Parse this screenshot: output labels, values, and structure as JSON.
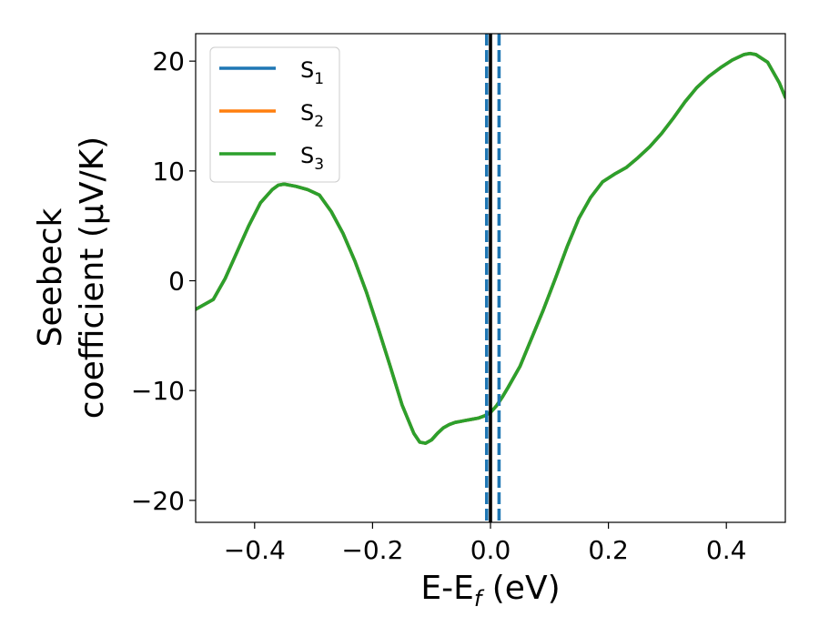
{
  "chart_data": {
    "type": "line",
    "xlabel_main": "E-E",
    "xlabel_sub": "f",
    "xlabel_unit": " (eV)",
    "ylabel_line1": "Seebeck",
    "ylabel_line2": "coefficient  (μV/K)",
    "xlim": [
      -0.5,
      0.5
    ],
    "ylim": [
      -22,
      22.5
    ],
    "xticks": [
      -0.4,
      -0.2,
      0.0,
      0.2,
      0.4
    ],
    "xtick_labels": [
      "−0.4",
      "−0.2",
      "0.0",
      "0.2",
      "0.4"
    ],
    "yticks": [
      -20,
      -10,
      0,
      10,
      20
    ],
    "ytick_labels": [
      "−20",
      "−10",
      "0",
      "10",
      "20"
    ],
    "grid": false,
    "legend_position": "top-left",
    "fermi_level_x": 0.0,
    "dashed_lines_x": [
      -0.0065,
      0.0145
    ],
    "series": [
      {
        "name": "S",
        "sub": "1",
        "color": "#1f77b4",
        "x": [
          -0.5,
          -0.47,
          -0.45,
          -0.43,
          -0.41,
          -0.39,
          -0.37,
          -0.36,
          -0.35,
          -0.33,
          -0.31,
          -0.29,
          -0.27,
          -0.25,
          -0.23,
          -0.21,
          -0.19,
          -0.17,
          -0.15,
          -0.13,
          -0.12,
          -0.11,
          -0.1,
          -0.09,
          -0.08,
          -0.07,
          -0.06,
          -0.05,
          -0.04,
          -0.03,
          -0.02,
          -0.01,
          0.0,
          0.01,
          0.02,
          0.03,
          0.05,
          0.07,
          0.09,
          0.11,
          0.13,
          0.15,
          0.17,
          0.19,
          0.21,
          0.23,
          0.25,
          0.27,
          0.29,
          0.31,
          0.33,
          0.35,
          0.37,
          0.39,
          0.41,
          0.43,
          0.44,
          0.45,
          0.47,
          0.49,
          0.5
        ],
        "y": [
          -2.6,
          -1.7,
          0.2,
          2.6,
          5.0,
          7.1,
          8.3,
          8.7,
          8.8,
          8.6,
          8.3,
          7.8,
          6.3,
          4.3,
          1.8,
          -1.1,
          -4.4,
          -7.8,
          -11.3,
          -13.9,
          -14.7,
          -14.8,
          -14.5,
          -13.9,
          -13.4,
          -13.1,
          -12.9,
          -12.8,
          -12.7,
          -12.6,
          -12.5,
          -12.3,
          -12.0,
          -11.4,
          -10.6,
          -9.7,
          -7.8,
          -5.2,
          -2.6,
          0.2,
          3.1,
          5.7,
          7.6,
          9.0,
          9.7,
          10.3,
          11.2,
          12.2,
          13.4,
          14.8,
          16.3,
          17.6,
          18.6,
          19.4,
          20.1,
          20.6,
          20.7,
          20.6,
          19.9,
          18.0,
          16.7
        ]
      },
      {
        "name": "S",
        "sub": "2",
        "color": "#ff7f0e",
        "x": [
          -0.5,
          -0.47,
          -0.45,
          -0.43,
          -0.41,
          -0.39,
          -0.37,
          -0.36,
          -0.35,
          -0.33,
          -0.31,
          -0.29,
          -0.27,
          -0.25,
          -0.23,
          -0.21,
          -0.19,
          -0.17,
          -0.15,
          -0.13,
          -0.12,
          -0.11,
          -0.1,
          -0.09,
          -0.08,
          -0.07,
          -0.06,
          -0.05,
          -0.04,
          -0.03,
          -0.02,
          -0.01,
          0.0,
          0.01,
          0.02,
          0.03,
          0.05,
          0.07,
          0.09,
          0.11,
          0.13,
          0.15,
          0.17,
          0.19,
          0.21,
          0.23,
          0.25,
          0.27,
          0.29,
          0.31,
          0.33,
          0.35,
          0.37,
          0.39,
          0.41,
          0.43,
          0.44,
          0.45,
          0.47,
          0.49,
          0.5
        ],
        "y": [
          -2.6,
          -1.7,
          0.2,
          2.6,
          5.0,
          7.1,
          8.3,
          8.7,
          8.8,
          8.6,
          8.3,
          7.8,
          6.3,
          4.3,
          1.8,
          -1.1,
          -4.4,
          -7.8,
          -11.3,
          -13.9,
          -14.7,
          -14.8,
          -14.5,
          -13.9,
          -13.4,
          -13.1,
          -12.9,
          -12.8,
          -12.7,
          -12.6,
          -12.5,
          -12.3,
          -12.0,
          -11.4,
          -10.6,
          -9.7,
          -7.8,
          -5.2,
          -2.6,
          0.2,
          3.1,
          5.7,
          7.6,
          9.0,
          9.7,
          10.3,
          11.2,
          12.2,
          13.4,
          14.8,
          16.3,
          17.6,
          18.6,
          19.4,
          20.1,
          20.6,
          20.7,
          20.6,
          19.9,
          18.0,
          16.7
        ]
      },
      {
        "name": "S",
        "sub": "3",
        "color": "#2ca02c",
        "x": [
          -0.5,
          -0.47,
          -0.45,
          -0.43,
          -0.41,
          -0.39,
          -0.37,
          -0.36,
          -0.35,
          -0.33,
          -0.31,
          -0.29,
          -0.27,
          -0.25,
          -0.23,
          -0.21,
          -0.19,
          -0.17,
          -0.15,
          -0.13,
          -0.12,
          -0.11,
          -0.1,
          -0.09,
          -0.08,
          -0.07,
          -0.06,
          -0.05,
          -0.04,
          -0.03,
          -0.02,
          -0.01,
          0.0,
          0.01,
          0.02,
          0.03,
          0.05,
          0.07,
          0.09,
          0.11,
          0.13,
          0.15,
          0.17,
          0.19,
          0.21,
          0.23,
          0.25,
          0.27,
          0.29,
          0.31,
          0.33,
          0.35,
          0.37,
          0.39,
          0.41,
          0.43,
          0.44,
          0.45,
          0.47,
          0.49,
          0.5
        ],
        "y": [
          -2.6,
          -1.7,
          0.2,
          2.6,
          5.0,
          7.1,
          8.3,
          8.7,
          8.8,
          8.6,
          8.3,
          7.8,
          6.3,
          4.3,
          1.8,
          -1.1,
          -4.4,
          -7.8,
          -11.3,
          -13.9,
          -14.7,
          -14.8,
          -14.5,
          -13.9,
          -13.4,
          -13.1,
          -12.9,
          -12.8,
          -12.7,
          -12.6,
          -12.5,
          -12.3,
          -12.0,
          -11.4,
          -10.6,
          -9.7,
          -7.8,
          -5.2,
          -2.6,
          0.2,
          3.1,
          5.7,
          7.6,
          9.0,
          9.7,
          10.3,
          11.2,
          12.2,
          13.4,
          14.8,
          16.3,
          17.6,
          18.6,
          19.4,
          20.1,
          20.6,
          20.7,
          20.6,
          19.9,
          18.0,
          16.7
        ]
      }
    ]
  }
}
